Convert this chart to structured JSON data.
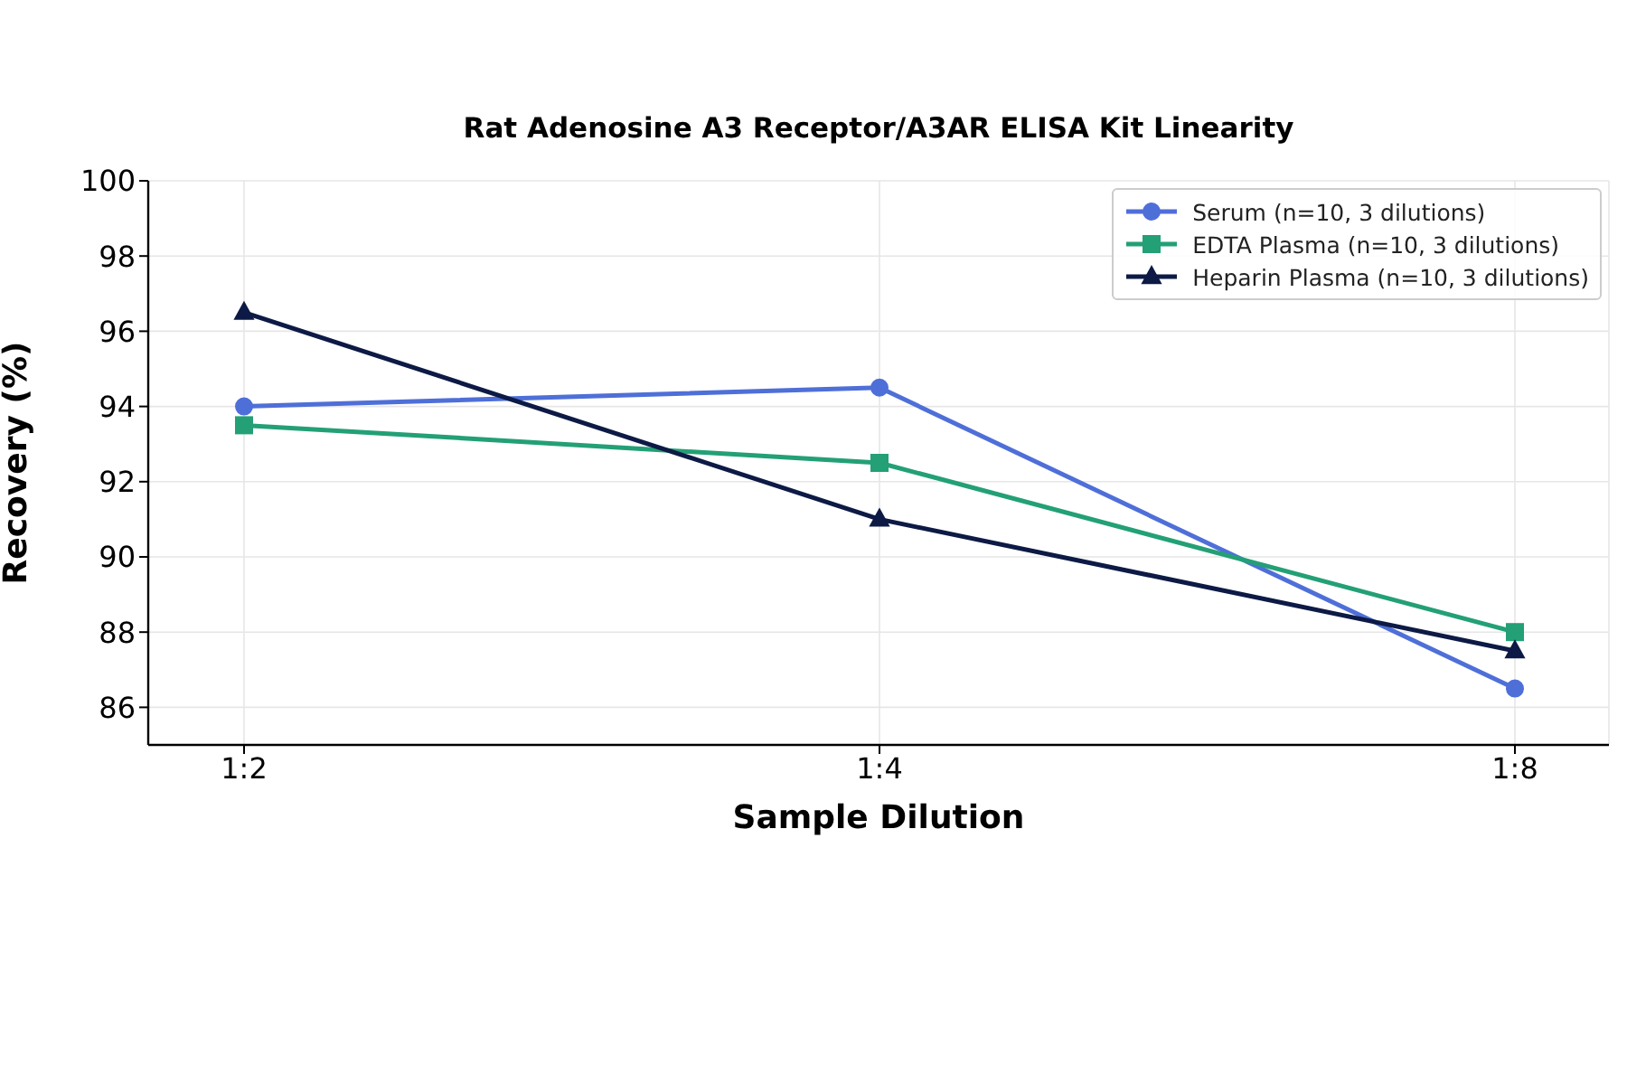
{
  "chart_data": {
    "type": "line",
    "title": "Rat Adenosine A3 Receptor/A3AR ELISA Kit Linearity",
    "xlabel": "Sample Dilution",
    "ylabel": "Recovery (%)",
    "categories": [
      "1:2",
      "1:4",
      "1:8"
    ],
    "series": [
      {
        "name": "Serum (n=10, 3 dilutions)",
        "color": "#4f6fd8",
        "marker": "circle",
        "values": [
          94,
          94.5,
          86.5
        ]
      },
      {
        "name": "EDTA Plasma (n=10, 3 dilutions)",
        "color": "#23a075",
        "marker": "square",
        "values": [
          93.5,
          92.5,
          88
        ]
      },
      {
        "name": "Heparin Plasma (n=10, 3 dilutions)",
        "color": "#0d1a45",
        "marker": "triangle",
        "values": [
          96.5,
          91,
          87.5
        ]
      }
    ],
    "ylim": [
      85,
      100
    ],
    "yticks": [
      86,
      88,
      90,
      92,
      94,
      96,
      98,
      100
    ],
    "grid": true,
    "legend": "top right",
    "line_style": "solid"
  }
}
